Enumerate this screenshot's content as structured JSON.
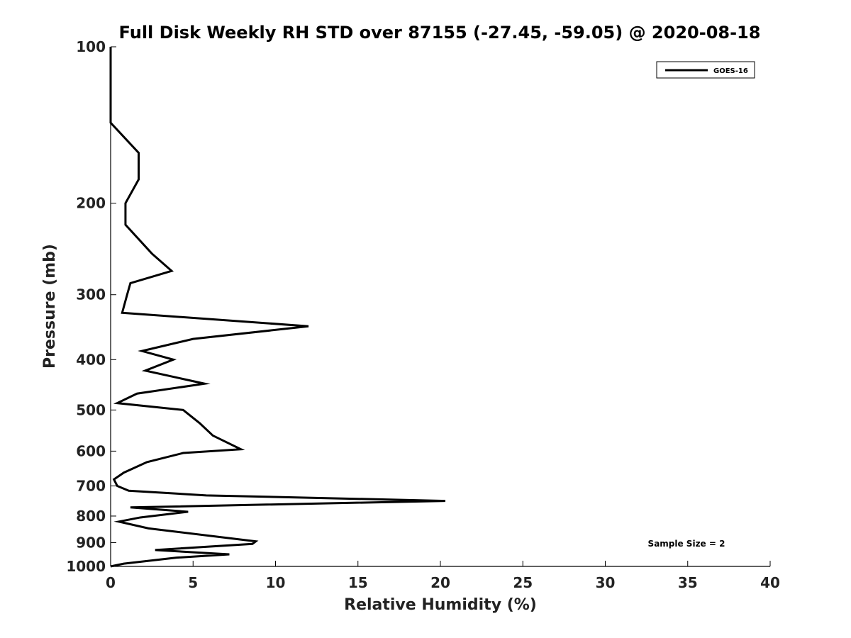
{
  "chart_data": {
    "type": "line",
    "title": "Full Disk Weekly RH STD over 87155 (-27.45, -59.05) @ 2020-08-18",
    "xlabel": "Relative Humidity (%)",
    "ylabel": "Pressure (mb)",
    "xlim": [
      0,
      40
    ],
    "ylim": [
      100,
      1000
    ],
    "yscale": "log",
    "yreversed": true,
    "xticks": [
      0,
      5,
      10,
      15,
      20,
      25,
      30,
      35,
      40
    ],
    "yticks": [
      100,
      200,
      300,
      400,
      500,
      600,
      700,
      800,
      900,
      1000
    ],
    "grid": false,
    "legend_position": "top-right",
    "annotation": "Sample Size = 2",
    "series": [
      {
        "name": "GOES-16",
        "color": "#000000",
        "points": [
          [
            0.0,
            100
          ],
          [
            0.0,
            115
          ],
          [
            0.0,
            130
          ],
          [
            0.0,
            140
          ],
          [
            1.7,
            160
          ],
          [
            1.7,
            180
          ],
          [
            0.9,
            200
          ],
          [
            0.9,
            220
          ],
          [
            2.5,
            250
          ],
          [
            3.7,
            270
          ],
          [
            1.2,
            285
          ],
          [
            1.0,
            300
          ],
          [
            0.7,
            325
          ],
          [
            12.0,
            345
          ],
          [
            5.0,
            365
          ],
          [
            1.9,
            385
          ],
          [
            3.8,
            400
          ],
          [
            2.1,
            420
          ],
          [
            5.7,
            445
          ],
          [
            1.6,
            465
          ],
          [
            0.4,
            485
          ],
          [
            4.4,
            500
          ],
          [
            5.4,
            530
          ],
          [
            6.2,
            560
          ],
          [
            7.9,
            595
          ],
          [
            4.4,
            605
          ],
          [
            2.2,
            630
          ],
          [
            0.8,
            660
          ],
          [
            0.2,
            680
          ],
          [
            0.4,
            700
          ],
          [
            1.1,
            715
          ],
          [
            5.8,
            730
          ],
          [
            20.3,
            748
          ],
          [
            1.2,
            770
          ],
          [
            4.7,
            785
          ],
          [
            1.8,
            805
          ],
          [
            0.5,
            820
          ],
          [
            2.3,
            845
          ],
          [
            8.8,
            895
          ],
          [
            8.6,
            905
          ],
          [
            2.7,
            930
          ],
          [
            7.2,
            948
          ],
          [
            4.0,
            962
          ],
          [
            0.8,
            988
          ],
          [
            0.0,
            1000
          ]
        ]
      }
    ]
  }
}
